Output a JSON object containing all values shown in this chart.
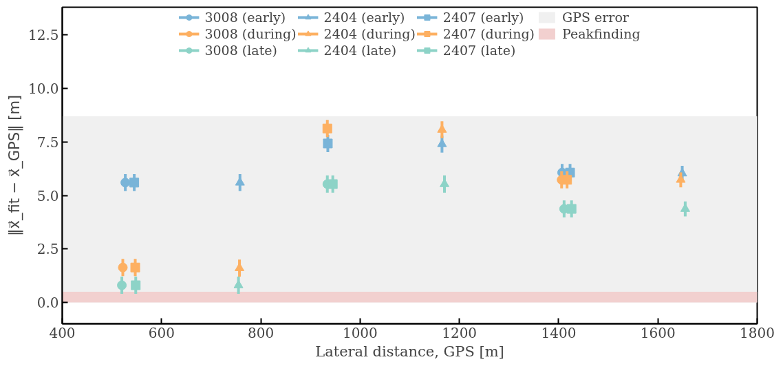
{
  "chart_data": {
    "type": "scatter",
    "xlabel": "Lateral distance, GPS [m]",
    "ylabel": "‖x⃗_fit − x⃗_GPS‖ [m]",
    "xlim": [
      400,
      1800
    ],
    "xticks": [
      400,
      600,
      800,
      1000,
      1200,
      1400,
      1600,
      1800
    ],
    "ylim": [
      -1,
      13.8
    ],
    "yticks": [
      {
        "value": 0,
        "label": "0.0"
      },
      {
        "value": 2.5,
        "label": "2.5"
      },
      {
        "value": 5,
        "label": "5.0"
      },
      {
        "value": 7.5,
        "label": "7.5"
      },
      {
        "value": 10,
        "label": "10.0"
      },
      {
        "value": 12.5,
        "label": "12.5"
      }
    ],
    "grid": false,
    "legend": "top",
    "bands": [
      {
        "axis": "y",
        "from": 0,
        "to": 8.7,
        "label": "GPS error",
        "color": "#f0f0f0"
      },
      {
        "axis": "y",
        "from": 0,
        "to": 0.5,
        "label": "Peakfinding",
        "color": "#f2d0cf"
      }
    ],
    "series": [
      {
        "name": "3008 (early)",
        "color": "#79b4d8",
        "marker": "circle",
        "x": [
          527,
          1407
        ],
        "values": [
          5.6,
          6.07
        ],
        "errors": [
          0.4,
          0.4
        ]
      },
      {
        "name": "3008 (during)",
        "color": "#fdb062",
        "marker": "circle",
        "x": [
          522,
          1406
        ],
        "values": [
          1.63,
          5.73
        ],
        "errors": [
          0.4,
          0.4
        ]
      },
      {
        "name": "3008 (late)",
        "color": "#8dd3c7",
        "marker": "circle",
        "x": [
          520,
          934,
          1411
        ],
        "values": [
          0.8,
          5.53,
          4.37
        ],
        "errors": [
          0.4,
          0.4,
          0.4
        ]
      },
      {
        "name": "2404 (early)",
        "color": "#79b4d8",
        "marker": "triangle",
        "x": [
          758,
          1165,
          1649
        ],
        "values": [
          5.6,
          7.4,
          6.03
        ],
        "errors": [
          0.4,
          0.4,
          0.35
        ]
      },
      {
        "name": "2404 (during)",
        "color": "#fdb062",
        "marker": "triangle",
        "x": [
          757,
          1165,
          1646
        ],
        "values": [
          1.6,
          8.07,
          5.73
        ],
        "errors": [
          0.4,
          0.4,
          0.35
        ]
      },
      {
        "name": "2404 (late)",
        "color": "#8dd3c7",
        "marker": "triangle",
        "x": [
          755,
          1170,
          1655
        ],
        "values": [
          0.8,
          5.53,
          4.37
        ],
        "errors": [
          0.4,
          0.4,
          0.35
        ]
      },
      {
        "name": "2407 (early)",
        "color": "#79b4d8",
        "marker": "square",
        "x": [
          545,
          935,
          1423
        ],
        "values": [
          5.6,
          7.43,
          6.07
        ],
        "errors": [
          0.4,
          0.4,
          0.4
        ]
      },
      {
        "name": "2407 (during)",
        "color": "#fdb062",
        "marker": "square",
        "x": [
          547,
          934,
          1417
        ],
        "values": [
          1.63,
          8.13,
          5.73
        ],
        "errors": [
          0.4,
          0.4,
          0.4
        ]
      },
      {
        "name": "2407 (late)",
        "color": "#8dd3c7",
        "marker": "square",
        "x": [
          548,
          945,
          1426
        ],
        "values": [
          0.8,
          5.53,
          4.37
        ],
        "errors": [
          0.4,
          0.4,
          0.4
        ]
      }
    ]
  }
}
